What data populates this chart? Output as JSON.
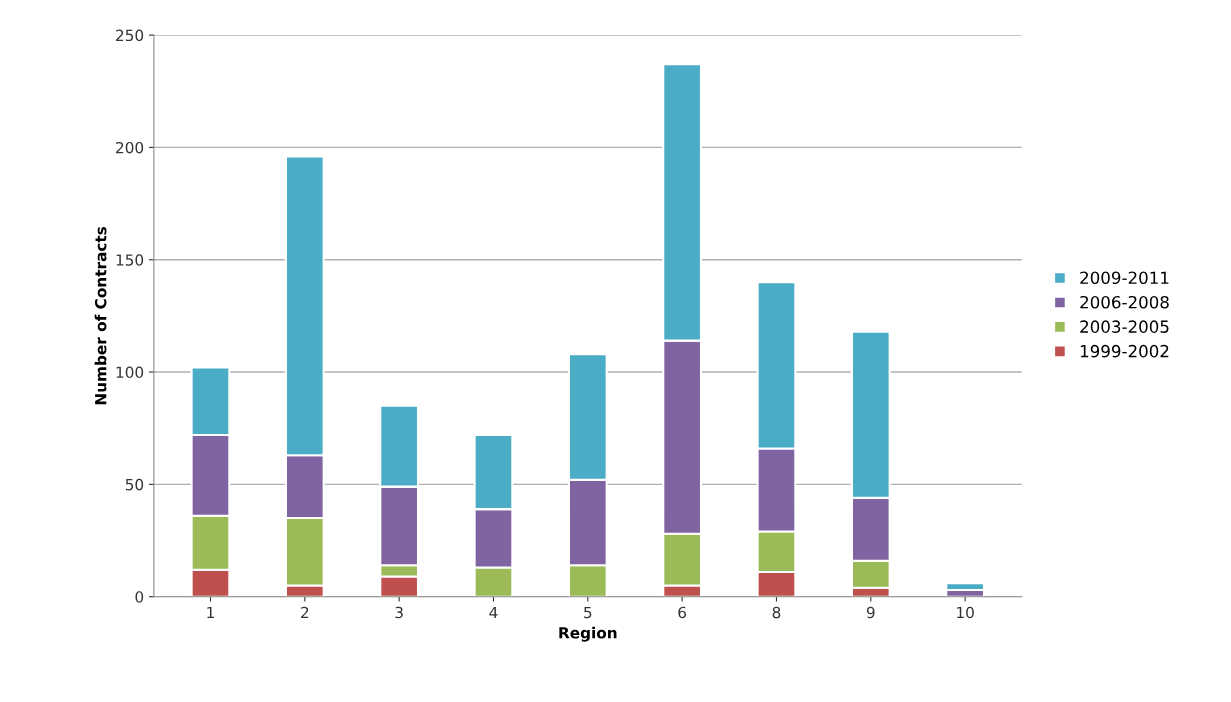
{
  "chart_data": {
    "type": "bar",
    "stacked": true,
    "xlabel": "Region",
    "ylabel": "Number of Contracts",
    "categories": [
      "1",
      "2",
      "3",
      "4",
      "5",
      "6",
      "8",
      "9",
      "10"
    ],
    "series": [
      {
        "name": "1999-2002",
        "color": "#c0504d",
        "values": [
          12,
          5,
          9,
          0,
          0,
          5,
          11,
          4,
          0
        ]
      },
      {
        "name": "2003-2005",
        "color": "#9bbb59",
        "values": [
          24,
          30,
          5,
          13,
          14,
          23,
          18,
          12,
          0
        ]
      },
      {
        "name": "2006-2008",
        "color": "#8064a2",
        "values": [
          36,
          28,
          35,
          26,
          38,
          86,
          37,
          28,
          3
        ]
      },
      {
        "name": "2009-2011",
        "color": "#4bacc6",
        "values": [
          30,
          133,
          36,
          33,
          56,
          123,
          74,
          74,
          3
        ]
      }
    ],
    "ylim": [
      0,
      250
    ],
    "yticks": [
      0,
      50,
      100,
      150,
      200,
      250
    ],
    "grid": "y",
    "legend": "right"
  }
}
